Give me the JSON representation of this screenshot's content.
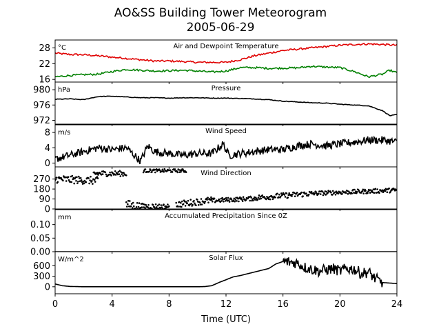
{
  "figure": {
    "title_line1": "AO&SS Building Tower Meteorogram",
    "title_line2": "2005-06-29",
    "xlabel": "Time (UTC)"
  },
  "chart_data": {
    "type": "line",
    "x_axis": {
      "label": "Time (UTC)",
      "range": [
        0,
        24
      ],
      "ticks": [
        0,
        4,
        8,
        12,
        16,
        20,
        24
      ]
    },
    "panels": [
      {
        "id": "temperature",
        "title": "Air and Dewpoint Temperature",
        "unit": "°C",
        "ylim": [
          15,
          31
        ],
        "yticks": [
          16,
          22,
          28
        ],
        "series": [
          {
            "color": "#e00000",
            "style": "line",
            "x": [
              0,
              1,
              2,
              3,
              4,
              5,
              6,
              7,
              8,
              9,
              10,
              11,
              12,
              13,
              14,
              15,
              16,
              17,
              18,
              19,
              20,
              21,
              22,
              23,
              24
            ],
            "y": [
              26,
              25.5,
              25.4,
              25,
              24.5,
              24,
              23.5,
              23,
              23,
              22.8,
              22.5,
              22.5,
              22.5,
              23.5,
              25,
              26,
              27,
              27.5,
              28,
              28.5,
              29,
              29.3,
              29.5,
              29.3,
              29
            ]
          },
          {
            "color": "#008000",
            "style": "line",
            "x": [
              0,
              1,
              2,
              3,
              4,
              5,
              6,
              7,
              8,
              9,
              10,
              11,
              12,
              13,
              14,
              15,
              16,
              17,
              18,
              19,
              20,
              21,
              22,
              23,
              23.5,
              24
            ],
            "y": [
              17,
              17.5,
              17.8,
              18,
              19,
              19.8,
              19.5,
              19.2,
              19.3,
              19.5,
              19.2,
              18.8,
              19.2,
              20.5,
              20.5,
              20.2,
              20.3,
              20.4,
              21,
              20.7,
              20.5,
              19,
              17,
              18,
              19.5,
              18.5
            ]
          }
        ]
      },
      {
        "id": "pressure",
        "title": "Pressure",
        "unit": "hPa",
        "ylim": [
          971,
          982
        ],
        "yticks": [
          972,
          976,
          980
        ],
        "series": [
          {
            "color": "#000000",
            "style": "line",
            "x": [
              0,
              1,
              2,
              3,
              4,
              5,
              6,
              7,
              8,
              9,
              10,
              11,
              12,
              13,
              14,
              15,
              16,
              17,
              18,
              19,
              20,
              21,
              22,
              23,
              23.5,
              24
            ],
            "y": [
              977.5,
              977.6,
              977.4,
              978.2,
              978.3,
              978.1,
              977.9,
              977.9,
              977.8,
              977.9,
              977.9,
              977.8,
              977.8,
              977.7,
              977.6,
              977.4,
              977,
              976.8,
              976.6,
              976.5,
              976.2,
              976,
              975.8,
              974.5,
              973.2,
              973.5
            ]
          }
        ]
      },
      {
        "id": "wind_speed",
        "title": "Wind Speed",
        "unit": "m/s",
        "ylim": [
          -1,
          10
        ],
        "yticks": [
          0,
          4,
          8
        ],
        "series": [
          {
            "color": "#000000",
            "style": "line",
            "noise": 1,
            "x": [
              0,
              1,
              2,
              3,
              4,
              5,
              6,
              6.5,
              7,
              8,
              9,
              10,
              11,
              11.8,
              12.2,
              13,
              14,
              15,
              16,
              17,
              18,
              19,
              20,
              21,
              22,
              23,
              24
            ],
            "y": [
              1,
              2,
              3,
              4,
              3.5,
              4,
              0.5,
              4.5,
              3,
              2.5,
              2,
              2.5,
              2.5,
              5,
              2,
              2.5,
              3,
              3.5,
              3.5,
              4.5,
              5,
              4.5,
              5,
              5.5,
              6,
              6,
              5.5
            ]
          }
        ]
      },
      {
        "id": "wind_direction",
        "title": "Wind Direction",
        "unit": "",
        "ylim": [
          0,
          380
        ],
        "yticks": [
          0,
          90,
          180,
          270
        ],
        "series": [
          {
            "color": "#000000",
            "style": "scatter",
            "segments": [
              {
                "x": [
                  0,
                  3
                ],
                "y": [
                  270,
                  255
                ],
                "jitter": 35
              },
              {
                "x": [
                  2.7,
                  5
                ],
                "y": [
                  320,
                  320
                ],
                "jitter": 25
              },
              {
                "x": [
                  5,
                  6
                ],
                "y": [
                  40,
                  20
                ],
                "jitter": 40
              },
              {
                "x": [
                  6,
                  8
                ],
                "y": [
                  25,
                  20
                ],
                "jitter": 25
              },
              {
                "x": [
                  6.2,
                  9.2
                ],
                "y": [
                  345,
                  345
                ],
                "jitter": 15
              },
              {
                "x": [
                  8.5,
                  11
                ],
                "y": [
                  40,
                  80
                ],
                "jitter": 30
              },
              {
                "x": [
                  11,
                  14
                ],
                "y": [
                  75,
                  95
                ],
                "jitter": 20
              },
              {
                "x": [
                  14,
                  18
                ],
                "y": [
                  100,
                  140
                ],
                "jitter": 25
              },
              {
                "x": [
                  18,
                  24
                ],
                "y": [
                  140,
                  170
                ],
                "jitter": 20
              }
            ]
          }
        ]
      },
      {
        "id": "precipitation",
        "title": "Accumulated Precipitation Since 0Z",
        "unit": "mm",
        "ylim": [
          0,
          0.155
        ],
        "yticks": [
          0.0,
          0.05,
          0.1
        ],
        "ytick_labels": [
          "0.00",
          "0.05",
          "0.10"
        ],
        "series": [
          {
            "color": "#000000",
            "style": "line",
            "x": [
              0,
              24
            ],
            "y": [
              0,
              0
            ]
          }
        ]
      },
      {
        "id": "solar_flux",
        "title": "Solar Flux",
        "unit": "W/m^2",
        "ylim": [
          -200,
          1000
        ],
        "yticks": [
          0,
          300,
          600
        ],
        "series": [
          {
            "color": "#000000",
            "style": "line",
            "noise_after": 16,
            "x": [
              0,
              0.5,
              1,
              2,
              3,
              4,
              5,
              6,
              7,
              8,
              9,
              10,
              10.5,
              11,
              11.5,
              12,
              12.5,
              13,
              14,
              15,
              15.5,
              16,
              16.5,
              17,
              17.5,
              18,
              18.5,
              19,
              19.5,
              20,
              20.5,
              21,
              21.5,
              22,
              22.5,
              23,
              24
            ],
            "y": [
              80,
              30,
              10,
              0,
              0,
              0,
              0,
              0,
              0,
              0,
              0,
              0,
              5,
              30,
              120,
              200,
              280,
              320,
              420,
              520,
              650,
              720,
              700,
              680,
              560,
              500,
              450,
              480,
              520,
              450,
              520,
              500,
              380,
              420,
              220,
              120,
              90
            ]
          }
        ]
      }
    ]
  }
}
